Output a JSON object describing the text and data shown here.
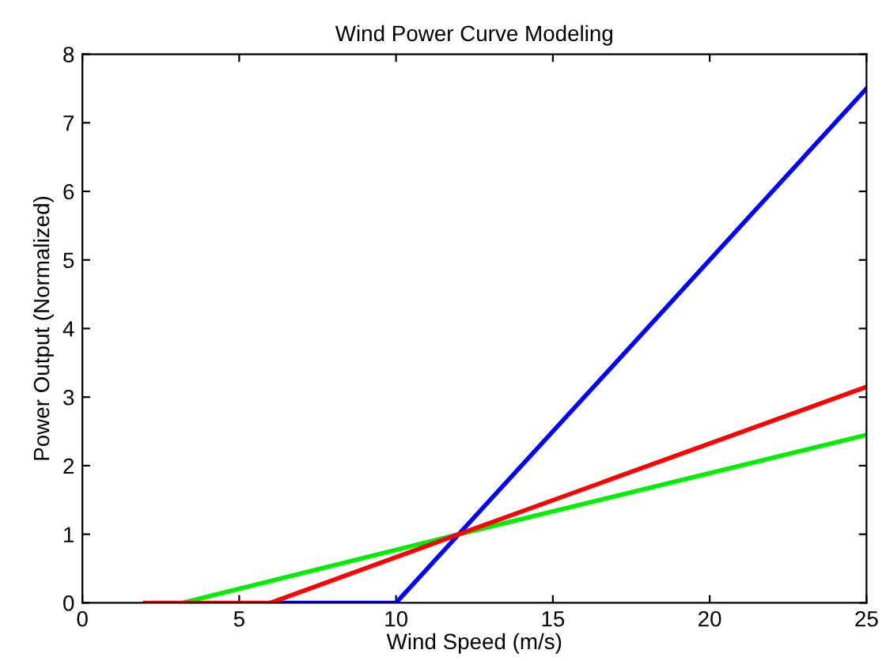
{
  "chart_data": {
    "type": "line",
    "title": "Wind Power Curve Modeling",
    "xlabel": "Wind Speed (m/s)",
    "ylabel": "Power Output (Normalized)",
    "series": [
      {
        "color": "#0000ff",
        "x": [
          6,
          10,
          12,
          25
        ],
        "values": [
          0,
          0,
          1,
          7.5
        ]
      },
      {
        "color": "#00ee00",
        "x": [
          3.2,
          12,
          25
        ],
        "values": [
          0,
          1,
          2.45
        ]
      },
      {
        "color": "#ff0000",
        "x": [
          2,
          6,
          12,
          25
        ],
        "values": [
          0,
          0,
          1,
          3.15
        ]
      }
    ],
    "xlim": [
      0,
      25
    ],
    "xticks": [
      0,
      5,
      10,
      15,
      20,
      25
    ],
    "ylim": [
      0,
      8
    ],
    "yticks": [
      0,
      1,
      2,
      3,
      4,
      5,
      6,
      7,
      8
    ],
    "grid": false,
    "legend": false,
    "marker": "none",
    "line_style": "solid"
  }
}
